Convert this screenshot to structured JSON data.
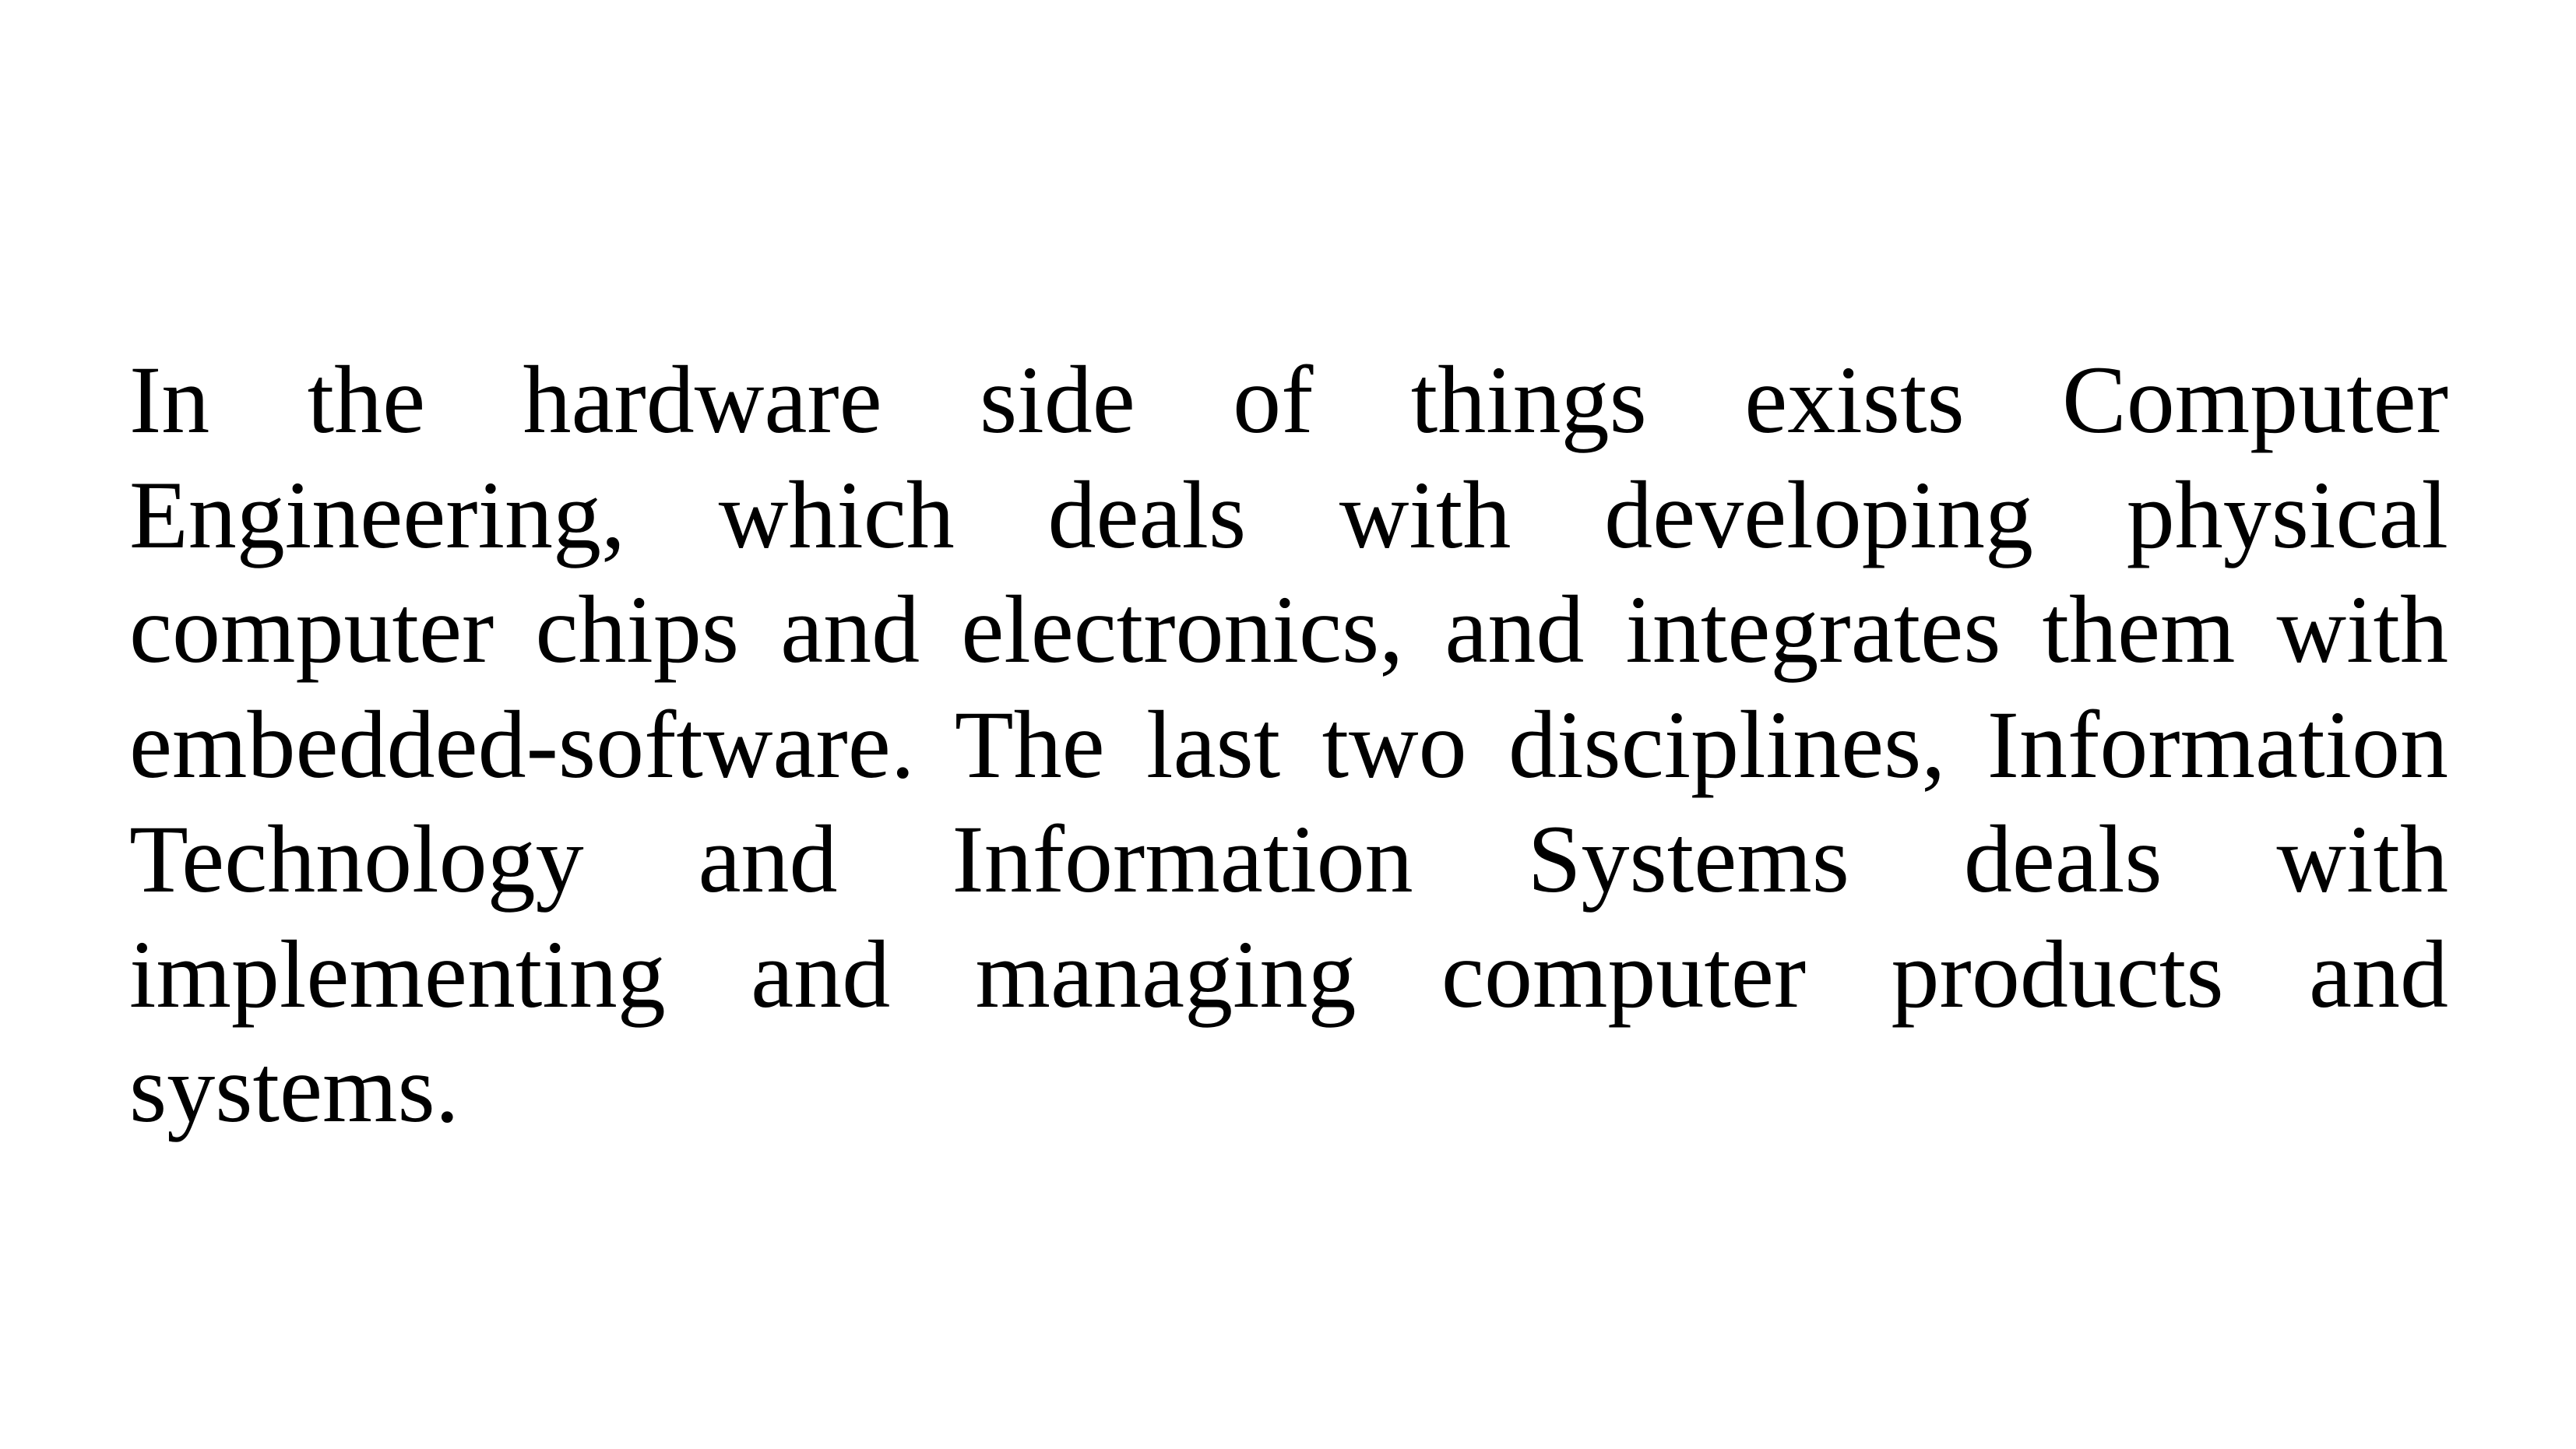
{
  "slide": {
    "paragraph": "In the hardware side of things exists Computer Engineering, which deals with developing physical computer chips and electronics, and integrates them with embedded-software. The last two disciplines, Information Technology and Information Systems deals with implementing and managing computer products and systems.",
    "colors": {
      "background": "#ffffff",
      "text": "#000000"
    }
  }
}
